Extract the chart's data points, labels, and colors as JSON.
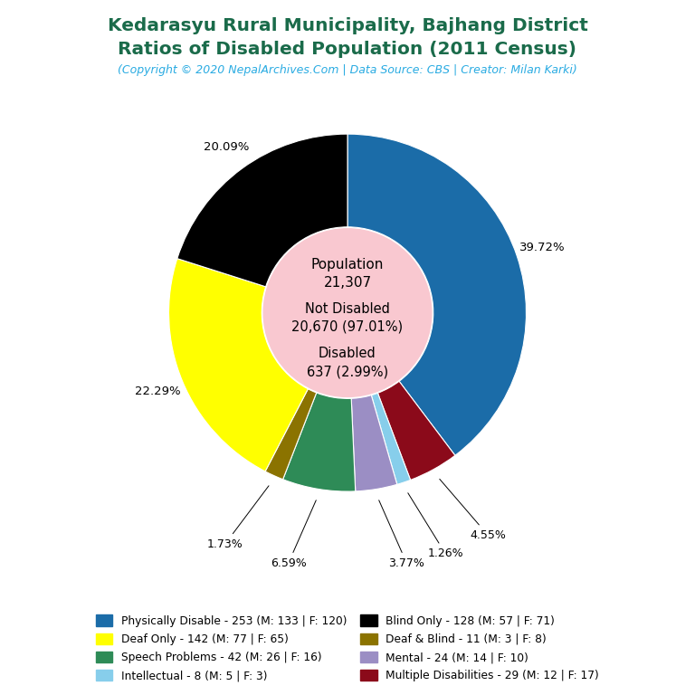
{
  "title_line1": "Kedarasyu Rural Municipality, Bajhang District",
  "title_line2": "Ratios of Disabled Population (2011 Census)",
  "subtitle": "(Copyright © 2020 NepalArchives.Com | Data Source: CBS | Creator: Milan Karki)",
  "title_color": "#1a6b4a",
  "subtitle_color": "#29abe2",
  "total_population": 21307,
  "not_disabled": 20670,
  "not_disabled_pct": 97.01,
  "disabled": 637,
  "disabled_pct": 2.99,
  "center_text_color": "#000000",
  "center_bg_color": "#f9c8d0",
  "ordered_counts": [
    253,
    29,
    8,
    24,
    42,
    11,
    142,
    128
  ],
  "ordered_colors": [
    "#1b6ca8",
    "#8b0a1a",
    "#87ceeb",
    "#9b8ec4",
    "#2e8b57",
    "#8b7300",
    "#ffff00",
    "#000000"
  ],
  "ordered_pcts": [
    39.72,
    4.55,
    1.26,
    3.77,
    6.59,
    1.73,
    22.29,
    20.09
  ],
  "legend_labels": [
    "Physically Disable - 253 (M: 133 | F: 120)",
    "Deaf Only - 142 (M: 77 | F: 65)",
    "Speech Problems - 42 (M: 26 | F: 16)",
    "Intellectual - 8 (M: 5 | F: 3)",
    "Blind Only - 128 (M: 57 | F: 71)",
    "Deaf & Blind - 11 (M: 3 | F: 8)",
    "Mental - 24 (M: 14 | F: 10)",
    "Multiple Disabilities - 29 (M: 12 | F: 17)"
  ],
  "legend_colors": [
    "#1b6ca8",
    "#ffff00",
    "#2e8b57",
    "#87ceeb",
    "#000000",
    "#8b7300",
    "#9b8ec4",
    "#8b0a1a"
  ],
  "background_color": "#ffffff"
}
